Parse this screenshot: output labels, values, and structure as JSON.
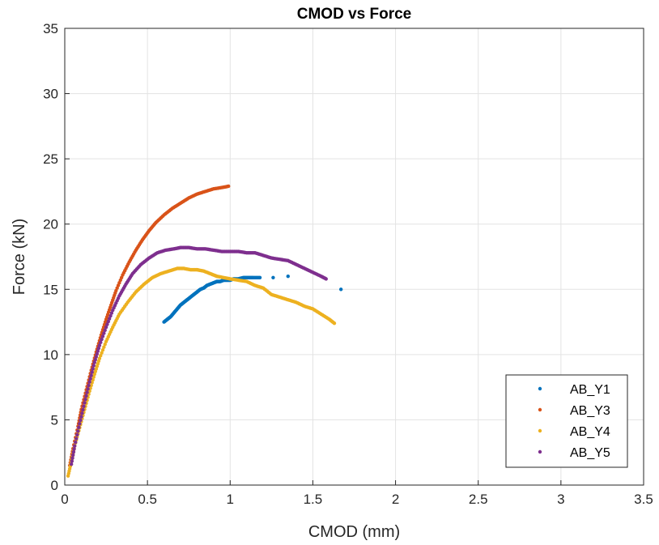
{
  "chart_data": {
    "type": "scatter",
    "title": "CMOD vs Force",
    "xlabel": "CMOD (mm)",
    "ylabel": "Force (kN)",
    "xlim": [
      0,
      3.5
    ],
    "ylim": [
      0,
      35
    ],
    "xticks": [
      "0",
      "0.5",
      "1",
      "1.5",
      "2",
      "2.5",
      "3",
      "3.5"
    ],
    "yticks": [
      "0",
      "5",
      "10",
      "15",
      "20",
      "25",
      "30",
      "35"
    ],
    "grid": true,
    "legend_position": "bottom-right",
    "series": [
      {
        "name": "AB_Y1",
        "color": "#0072BD",
        "points": [
          [
            0.6,
            12.5
          ],
          [
            0.62,
            12.7
          ],
          [
            0.64,
            12.9
          ],
          [
            0.66,
            13.2
          ],
          [
            0.68,
            13.5
          ],
          [
            0.7,
            13.8
          ],
          [
            0.72,
            14.0
          ],
          [
            0.74,
            14.2
          ],
          [
            0.76,
            14.4
          ],
          [
            0.78,
            14.6
          ],
          [
            0.8,
            14.8
          ],
          [
            0.82,
            15.0
          ],
          [
            0.84,
            15.1
          ],
          [
            0.86,
            15.3
          ],
          [
            0.88,
            15.4
          ],
          [
            0.9,
            15.5
          ],
          [
            0.92,
            15.6
          ],
          [
            0.94,
            15.6
          ],
          [
            0.96,
            15.7
          ],
          [
            0.98,
            15.7
          ],
          [
            1.0,
            15.7
          ],
          [
            1.02,
            15.8
          ],
          [
            1.05,
            15.8
          ],
          [
            1.08,
            15.9
          ],
          [
            1.11,
            15.9
          ],
          [
            1.14,
            15.9
          ],
          [
            1.18,
            15.9
          ],
          [
            1.26,
            15.9
          ],
          [
            1.35,
            16.0
          ],
          [
            1.67,
            15.0
          ]
        ]
      },
      {
        "name": "AB_Y3",
        "color": "#D95319",
        "points": [
          [
            0.03,
            1.5
          ],
          [
            0.05,
            2.8
          ],
          [
            0.08,
            4.5
          ],
          [
            0.1,
            5.8
          ],
          [
            0.13,
            7.3
          ],
          [
            0.16,
            8.8
          ],
          [
            0.19,
            10.2
          ],
          [
            0.22,
            11.5
          ],
          [
            0.25,
            12.7
          ],
          [
            0.28,
            13.8
          ],
          [
            0.31,
            14.9
          ],
          [
            0.35,
            16.1
          ],
          [
            0.39,
            17.1
          ],
          [
            0.43,
            18.0
          ],
          [
            0.47,
            18.8
          ],
          [
            0.51,
            19.5
          ],
          [
            0.55,
            20.1
          ],
          [
            0.6,
            20.7
          ],
          [
            0.65,
            21.2
          ],
          [
            0.7,
            21.6
          ],
          [
            0.75,
            22.0
          ],
          [
            0.8,
            22.3
          ],
          [
            0.85,
            22.5
          ],
          [
            0.9,
            22.7
          ],
          [
            0.95,
            22.8
          ],
          [
            0.99,
            22.9
          ]
        ]
      },
      {
        "name": "AB_Y4",
        "color": "#EDB120",
        "points": [
          [
            0.02,
            0.7
          ],
          [
            0.04,
            1.8
          ],
          [
            0.06,
            3.0
          ],
          [
            0.09,
            4.4
          ],
          [
            0.12,
            5.8
          ],
          [
            0.15,
            7.2
          ],
          [
            0.18,
            8.5
          ],
          [
            0.21,
            9.7
          ],
          [
            0.25,
            11.0
          ],
          [
            0.29,
            12.1
          ],
          [
            0.33,
            13.1
          ],
          [
            0.38,
            14.0
          ],
          [
            0.43,
            14.8
          ],
          [
            0.48,
            15.4
          ],
          [
            0.53,
            15.9
          ],
          [
            0.58,
            16.2
          ],
          [
            0.63,
            16.4
          ],
          [
            0.68,
            16.6
          ],
          [
            0.72,
            16.6
          ],
          [
            0.76,
            16.5
          ],
          [
            0.8,
            16.5
          ],
          [
            0.84,
            16.4
          ],
          [
            0.88,
            16.2
          ],
          [
            0.92,
            16.0
          ],
          [
            0.96,
            15.9
          ],
          [
            1.0,
            15.8
          ],
          [
            1.05,
            15.7
          ],
          [
            1.1,
            15.6
          ],
          [
            1.15,
            15.3
          ],
          [
            1.2,
            15.1
          ],
          [
            1.25,
            14.6
          ],
          [
            1.3,
            14.4
          ],
          [
            1.35,
            14.2
          ],
          [
            1.4,
            14.0
          ],
          [
            1.45,
            13.7
          ],
          [
            1.5,
            13.5
          ],
          [
            1.55,
            13.1
          ],
          [
            1.6,
            12.7
          ],
          [
            1.63,
            12.4
          ]
        ]
      },
      {
        "name": "AB_Y5",
        "color": "#7E2F8E",
        "points": [
          [
            0.04,
            1.6
          ],
          [
            0.06,
            3.0
          ],
          [
            0.09,
            4.7
          ],
          [
            0.12,
            6.3
          ],
          [
            0.15,
            7.9
          ],
          [
            0.18,
            9.4
          ],
          [
            0.21,
            10.7
          ],
          [
            0.25,
            12.1
          ],
          [
            0.29,
            13.4
          ],
          [
            0.33,
            14.5
          ],
          [
            0.37,
            15.4
          ],
          [
            0.41,
            16.2
          ],
          [
            0.46,
            16.9
          ],
          [
            0.51,
            17.4
          ],
          [
            0.56,
            17.8
          ],
          [
            0.61,
            18.0
          ],
          [
            0.66,
            18.1
          ],
          [
            0.7,
            18.2
          ],
          [
            0.75,
            18.2
          ],
          [
            0.8,
            18.1
          ],
          [
            0.85,
            18.1
          ],
          [
            0.9,
            18.0
          ],
          [
            0.95,
            17.9
          ],
          [
            1.0,
            17.9
          ],
          [
            1.05,
            17.9
          ],
          [
            1.1,
            17.8
          ],
          [
            1.15,
            17.8
          ],
          [
            1.2,
            17.6
          ],
          [
            1.25,
            17.4
          ],
          [
            1.3,
            17.3
          ],
          [
            1.35,
            17.2
          ],
          [
            1.4,
            16.9
          ],
          [
            1.45,
            16.6
          ],
          [
            1.5,
            16.3
          ],
          [
            1.55,
            16.0
          ],
          [
            1.58,
            15.8
          ]
        ]
      }
    ]
  }
}
